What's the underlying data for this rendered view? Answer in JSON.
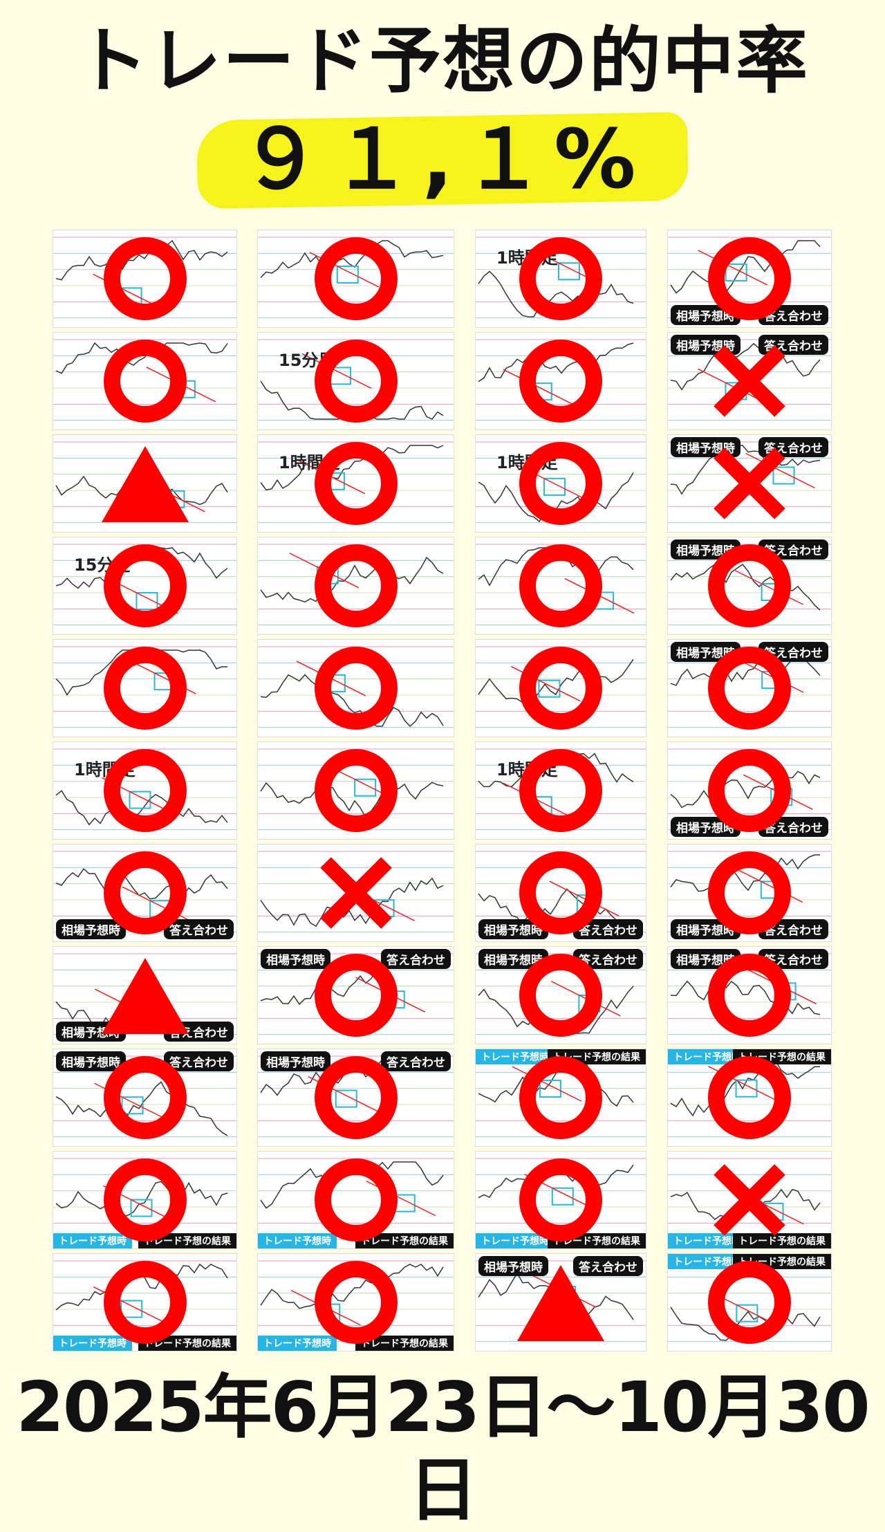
{
  "title": "トレード予想の的中率",
  "rate": "９１,１%",
  "date_range": "2025年6月23日～10月30日",
  "colors": {
    "mark": "#ff0000",
    "highlight": "#f6f21c",
    "background": "#fffde3",
    "label_blue": "#25b6e6"
  },
  "labels": {
    "pred": "相場予想時",
    "answer": "答え合わせ",
    "trade_pred": "トレード予想時",
    "trade_result": "トレード予想の結果",
    "h1": "1時間足",
    "m15": "15分足"
  },
  "rows": [
    [
      {
        "mark": "circle",
        "text": ""
      },
      {
        "mark": "circle",
        "text": ""
      },
      {
        "mark": "circle",
        "text": "1時間足"
      },
      {
        "mark": "circle",
        "style": "black-bottom"
      }
    ],
    [
      {
        "mark": "circle",
        "text": ""
      },
      {
        "mark": "circle",
        "text": "15分足"
      },
      {
        "mark": "circle",
        "text": ""
      },
      {
        "mark": "cross",
        "style": "black-top"
      }
    ],
    [
      {
        "mark": "triangle",
        "text": ""
      },
      {
        "mark": "circle",
        "text": "1時間足"
      },
      {
        "mark": "circle",
        "text": "1時間足"
      },
      {
        "mark": "cross",
        "style": "black-top"
      }
    ],
    [
      {
        "mark": "circle",
        "text": "15分足"
      },
      {
        "mark": "circle",
        "text": ""
      },
      {
        "mark": "circle",
        "text": ""
      },
      {
        "mark": "circle",
        "style": "black-top"
      }
    ],
    [
      {
        "mark": "circle",
        "text": ""
      },
      {
        "mark": "circle",
        "text": ""
      },
      {
        "mark": "circle",
        "text": ""
      },
      {
        "mark": "circle",
        "style": "black-top"
      }
    ],
    [
      {
        "mark": "circle",
        "text": "1時間足"
      },
      {
        "mark": "circle",
        "text": ""
      },
      {
        "mark": "circle",
        "text": "1時間足"
      },
      {
        "mark": "circle",
        "style": "black-bottom"
      }
    ],
    [
      {
        "mark": "circle",
        "style": "black-bottom"
      },
      {
        "mark": "cross",
        "text": ""
      },
      {
        "mark": "circle",
        "style": "black-bottom"
      },
      {
        "mark": "circle",
        "style": "black-bottom"
      }
    ],
    [
      {
        "mark": "triangle",
        "style": "black-bottom"
      },
      {
        "mark": "circle",
        "style": "black-top"
      },
      {
        "mark": "circle",
        "style": "black-top"
      },
      {
        "mark": "circle",
        "style": "black-top"
      }
    ],
    [
      {
        "mark": "circle",
        "style": "black-top"
      },
      {
        "mark": "circle",
        "style": "black-top"
      },
      {
        "mark": "circle",
        "style": "blue-top"
      },
      {
        "mark": "circle",
        "style": "blue-top"
      }
    ],
    [
      {
        "mark": "circle",
        "style": "blue-bottom"
      },
      {
        "mark": "circle",
        "style": "blue-bottom"
      },
      {
        "mark": "circle",
        "style": "blue-bottom"
      },
      {
        "mark": "cross",
        "style": "blue-bottom"
      }
    ],
    [
      {
        "mark": "circle",
        "style": "blue-bottom"
      },
      {
        "mark": "circle",
        "style": "blue-bottom"
      },
      {
        "mark": "triangle",
        "style": "black-top"
      },
      {
        "mark": "circle",
        "style": "blue-top"
      }
    ]
  ]
}
